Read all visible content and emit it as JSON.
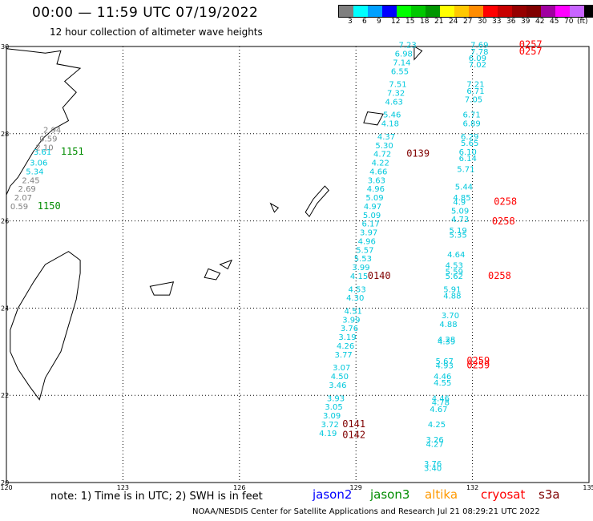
{
  "header": {
    "title": "00:00 — 11:59 UTC 07/19/2022",
    "subtitle": "12 hour collection of altimeter wave heights"
  },
  "legend": {
    "swatches": [
      "#7f7f7f",
      "#00ffff",
      "#00a0ff",
      "#0000ff",
      "#00ff00",
      "#00c800",
      "#009600",
      "#ffff00",
      "#ffc800",
      "#ff8c00",
      "#ff0000",
      "#c80000",
      "#960000",
      "#800000",
      "#a000a0",
      "#ff00ff",
      "#c864ff",
      "#000000"
    ],
    "labels": [
      "3",
      "6",
      "9",
      "12",
      "15",
      "18",
      "21",
      "24",
      "27",
      "30",
      "33",
      "36",
      "39",
      "42",
      "45",
      "70",
      "(ft)"
    ]
  },
  "axes": {
    "lat_labels": [
      "30",
      "28",
      "26",
      "24",
      "22",
      "20"
    ],
    "lon_labels": [
      "120",
      "123",
      "126",
      "129",
      "132",
      "135"
    ]
  },
  "colors": {
    "jason2": "#0000ff",
    "jason3": "#008c00",
    "altika": "#ff9900",
    "cryosat": "#ff0000",
    "s3a": "#800000",
    "cyan_obs": "#00c8dc",
    "gray_obs": "#808080",
    "coast": "#000000",
    "grid": "#000000"
  },
  "footer": {
    "note": "note: 1) Time is in UTC; 2) SWH is in feet",
    "satellites": [
      "jason2",
      "jason3",
      "altika",
      "cryosat",
      "s3a"
    ],
    "credit": "NOAA/NESDIS Center for Satellite Applications and Research   Jul 21 08:29:21 UTC 2022"
  },
  "observations": {
    "cyan": [
      {
        "t": "7.23",
        "lon": 130.1,
        "lat": 29.97
      },
      {
        "t": "6.98",
        "lon": 130.0,
        "lat": 29.77
      },
      {
        "t": "7.14",
        "lon": 129.95,
        "lat": 29.57
      },
      {
        "t": "6.55",
        "lon": 129.9,
        "lat": 29.37
      },
      {
        "t": "7.51",
        "lon": 129.85,
        "lat": 29.07
      },
      {
        "t": "7.32",
        "lon": 129.8,
        "lat": 28.87
      },
      {
        "t": "4.63",
        "lon": 129.75,
        "lat": 28.67
      },
      {
        "t": "5.46",
        "lon": 129.7,
        "lat": 28.37
      },
      {
        "t": "4.18",
        "lon": 129.65,
        "lat": 28.17
      },
      {
        "t": "4.37",
        "lon": 129.55,
        "lat": 27.87
      },
      {
        "t": "5.30",
        "lon": 129.5,
        "lat": 27.67
      },
      {
        "t": "4.72",
        "lon": 129.45,
        "lat": 27.47
      },
      {
        "t": "4.22",
        "lon": 129.4,
        "lat": 27.27
      },
      {
        "t": "4.66",
        "lon": 129.35,
        "lat": 27.07
      },
      {
        "t": "3.63",
        "lon": 129.3,
        "lat": 26.87
      },
      {
        "t": "4.96",
        "lon": 129.28,
        "lat": 26.67
      },
      {
        "t": "5.09",
        "lon": 129.25,
        "lat": 26.47
      },
      {
        "t": "4.97",
        "lon": 129.2,
        "lat": 26.27
      },
      {
        "t": "5.09",
        "lon": 129.18,
        "lat": 26.07
      },
      {
        "t": "6.17",
        "lon": 129.15,
        "lat": 25.87
      },
      {
        "t": "3.97",
        "lon": 129.1,
        "lat": 25.67
      },
      {
        "t": "4.96",
        "lon": 129.05,
        "lat": 25.47
      },
      {
        "t": "5.57",
        "lon": 129.0,
        "lat": 25.27
      },
      {
        "t": "5.53",
        "lon": 128.95,
        "lat": 25.07
      },
      {
        "t": "3.99",
        "lon": 128.9,
        "lat": 24.87
      },
      {
        "t": "4.15",
        "lon": 128.85,
        "lat": 24.67
      },
      {
        "t": "4.53",
        "lon": 128.8,
        "lat": 24.37
      },
      {
        "t": "4.30",
        "lon": 128.75,
        "lat": 24.17
      },
      {
        "t": "4.51",
        "lon": 128.7,
        "lat": 23.87
      },
      {
        "t": "3.99",
        "lon": 128.65,
        "lat": 23.67
      },
      {
        "t": "3.76",
        "lon": 128.6,
        "lat": 23.47
      },
      {
        "t": "3.19",
        "lon": 128.55,
        "lat": 23.27
      },
      {
        "t": "4.26",
        "lon": 128.5,
        "lat": 23.07
      },
      {
        "t": "3.77",
        "lon": 128.45,
        "lat": 22.87
      },
      {
        "t": "3.07",
        "lon": 128.4,
        "lat": 22.57
      },
      {
        "t": "4.50",
        "lon": 128.35,
        "lat": 22.37
      },
      {
        "t": "3.46",
        "lon": 128.3,
        "lat": 22.17
      },
      {
        "t": "3.93",
        "lon": 128.25,
        "lat": 21.87
      },
      {
        "t": "3.05",
        "lon": 128.2,
        "lat": 21.67
      },
      {
        "t": "3.09",
        "lon": 128.15,
        "lat": 21.47
      },
      {
        "t": "3.72",
        "lon": 128.1,
        "lat": 21.27
      },
      {
        "t": "4.19",
        "lon": 128.05,
        "lat": 21.07
      },
      {
        "t": "7.69",
        "lon": 131.95,
        "lat": 29.97
      },
      {
        "t": "7.78",
        "lon": 131.95,
        "lat": 29.82
      },
      {
        "t": "6.09",
        "lon": 131.9,
        "lat": 29.67
      },
      {
        "t": "7.02",
        "lon": 131.9,
        "lat": 29.52
      },
      {
        "t": "7.21",
        "lon": 131.85,
        "lat": 29.07
      },
      {
        "t": "6.71",
        "lon": 131.85,
        "lat": 28.92
      },
      {
        "t": "7.05",
        "lon": 131.8,
        "lat": 28.72
      },
      {
        "t": "6.71",
        "lon": 131.75,
        "lat": 28.37
      },
      {
        "t": "6.89",
        "lon": 131.75,
        "lat": 28.17
      },
      {
        "t": "6.29",
        "lon": 131.7,
        "lat": 27.87
      },
      {
        "t": "5.65",
        "lon": 131.7,
        "lat": 27.72
      },
      {
        "t": "6.10",
        "lon": 131.65,
        "lat": 27.52
      },
      {
        "t": "6.14",
        "lon": 131.65,
        "lat": 27.37
      },
      {
        "t": "5.71",
        "lon": 131.6,
        "lat": 27.12
      },
      {
        "t": "5.44",
        "lon": 131.55,
        "lat": 26.72
      },
      {
        "t": "4.85",
        "lon": 131.5,
        "lat": 26.47
      },
      {
        "t": "4.9",
        "lon": 131.5,
        "lat": 26.37
      },
      {
        "t": "5.09",
        "lon": 131.45,
        "lat": 26.17
      },
      {
        "t": "4.73",
        "lon": 131.45,
        "lat": 25.97
      },
      {
        "t": "5.19",
        "lon": 131.4,
        "lat": 25.72
      },
      {
        "t": "5.35",
        "lon": 131.4,
        "lat": 25.62
      },
      {
        "t": "4.64",
        "lon": 131.35,
        "lat": 25.17
      },
      {
        "t": "4.53",
        "lon": 131.3,
        "lat": 24.92
      },
      {
        "t": "5.59",
        "lon": 131.3,
        "lat": 24.77
      },
      {
        "t": "5.62",
        "lon": 131.3,
        "lat": 24.67
      },
      {
        "t": "5.91",
        "lon": 131.25,
        "lat": 24.37
      },
      {
        "t": "4.88",
        "lon": 131.25,
        "lat": 24.22
      },
      {
        "t": "3.70",
        "lon": 131.2,
        "lat": 23.77
      },
      {
        "t": "4.88",
        "lon": 131.15,
        "lat": 23.57
      },
      {
        "t": "4.28",
        "lon": 131.1,
        "lat": 23.22
      },
      {
        "t": "4.39",
        "lon": 131.1,
        "lat": 23.17
      },
      {
        "t": "5.67",
        "lon": 131.05,
        "lat": 22.72
      },
      {
        "t": "4.93",
        "lon": 131.05,
        "lat": 22.62
      },
      {
        "t": "4.46",
        "lon": 131.0,
        "lat": 22.37
      },
      {
        "t": "4.55",
        "lon": 131.0,
        "lat": 22.22
      },
      {
        "t": "4.46",
        "lon": 130.95,
        "lat": 21.87
      },
      {
        "t": "4.78",
        "lon": 130.95,
        "lat": 21.77
      },
      {
        "t": "4.67",
        "lon": 130.9,
        "lat": 21.62
      },
      {
        "t": "4.25",
        "lon": 130.85,
        "lat": 21.27
      },
      {
        "t": "3.26",
        "lon": 130.8,
        "lat": 20.92
      },
      {
        "t": "4.27",
        "lon": 130.8,
        "lat": 20.82
      },
      {
        "t": "3.76",
        "lon": 130.75,
        "lat": 20.37
      },
      {
        "t": "3.40",
        "lon": 130.75,
        "lat": 20.27
      },
      {
        "t": "3.61",
        "lon": 120.7,
        "lat": 27.52
      },
      {
        "t": "3.06",
        "lon": 120.6,
        "lat": 27.27
      },
      {
        "t": "5.34",
        "lon": 120.5,
        "lat": 27.07
      }
    ],
    "gray": [
      {
        "t": "2.94",
        "lon": 120.95,
        "lat": 28.02
      },
      {
        "t": "0.59",
        "lon": 120.85,
        "lat": 27.82
      },
      {
        "t": "2.10",
        "lon": 120.75,
        "lat": 27.62
      },
      {
        "t": "2.45",
        "lon": 120.4,
        "lat": 26.87
      },
      {
        "t": "2.69",
        "lon": 120.3,
        "lat": 26.67
      },
      {
        "t": "2.07",
        "lon": 120.2,
        "lat": 26.47
      },
      {
        "t": "0.59",
        "lon": 120.1,
        "lat": 26.27
      }
    ],
    "time_labels": [
      {
        "t": "1151",
        "lon": 121.4,
        "lat": 27.52,
        "c": "jason3"
      },
      {
        "t": "1150",
        "lon": 120.8,
        "lat": 26.27,
        "c": "jason3"
      },
      {
        "t": "0139",
        "lon": 130.3,
        "lat": 27.47,
        "c": "s3a"
      },
      {
        "t": "0140",
        "lon": 129.3,
        "lat": 24.67,
        "c": "s3a"
      },
      {
        "t": "0141",
        "lon": 128.65,
        "lat": 21.27,
        "c": "s3a"
      },
      {
        "t": "0142",
        "lon": 128.65,
        "lat": 21.02,
        "c": "s3a"
      },
      {
        "t": "0257",
        "lon": 133.2,
        "lat": 29.97,
        "c": "cryosat"
      },
      {
        "t": "0257",
        "lon": 133.2,
        "lat": 29.82,
        "c": "cryosat"
      },
      {
        "t": "0258",
        "lon": 132.55,
        "lat": 26.37,
        "c": "cryosat"
      },
      {
        "t": "0258",
        "lon": 132.5,
        "lat": 25.92,
        "c": "cryosat"
      },
      {
        "t": "0258",
        "lon": 132.4,
        "lat": 24.67,
        "c": "cryosat"
      },
      {
        "t": "0259",
        "lon": 131.85,
        "lat": 22.72,
        "c": "cryosat"
      },
      {
        "t": "0259",
        "lon": 131.85,
        "lat": 22.62,
        "c": "cryosat"
      }
    ]
  }
}
